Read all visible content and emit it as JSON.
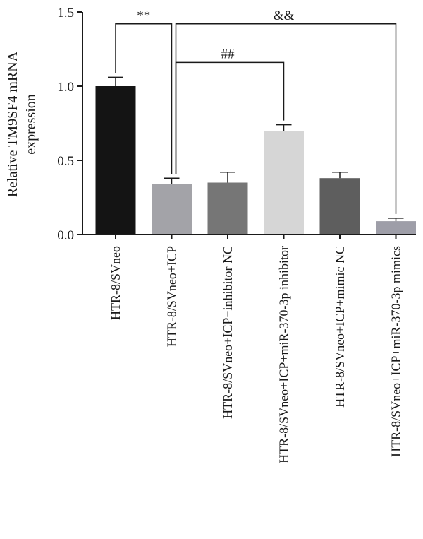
{
  "chart_data": {
    "type": "bar",
    "title": "",
    "xlabel": "",
    "ylabel_lines": [
      "Relative TM9SF4 mRNA",
      "expression"
    ],
    "ylim": [
      0,
      1.5
    ],
    "yticks": [
      0.0,
      0.5,
      1.0,
      1.5
    ],
    "ytick_labels": [
      "0.0",
      "0.5",
      "1.0",
      "1.5"
    ],
    "grid": false,
    "categories": [
      "HTR-8/SVneo",
      "HTR-8/SVneo+ICP",
      "HTR-8/SVneo+ICP+inhibitor NC",
      "HTR-8/SVneo+ICP+miR-370-3p inhibitor",
      "HTR-8/SVneo+ICP+mimic NC",
      "HTR-8/SVneo+ICP+miR-370-3p mimics"
    ],
    "values": [
      1.0,
      0.34,
      0.35,
      0.7,
      0.38,
      0.09
    ],
    "errors": [
      0.06,
      0.04,
      0.07,
      0.04,
      0.04,
      0.02
    ],
    "colors": [
      "#141414",
      "#a3a3a8",
      "#767676",
      "#d6d6d6",
      "#5e5e5e",
      "#9e9ea8"
    ],
    "significance": [
      {
        "label": "**",
        "from": 0,
        "to": 1,
        "height": 1.42
      },
      {
        "label": "&&",
        "from": 1,
        "to": 5,
        "height": 1.42
      },
      {
        "label": "##",
        "from": 1,
        "to": 3,
        "height": 1.16
      }
    ]
  }
}
